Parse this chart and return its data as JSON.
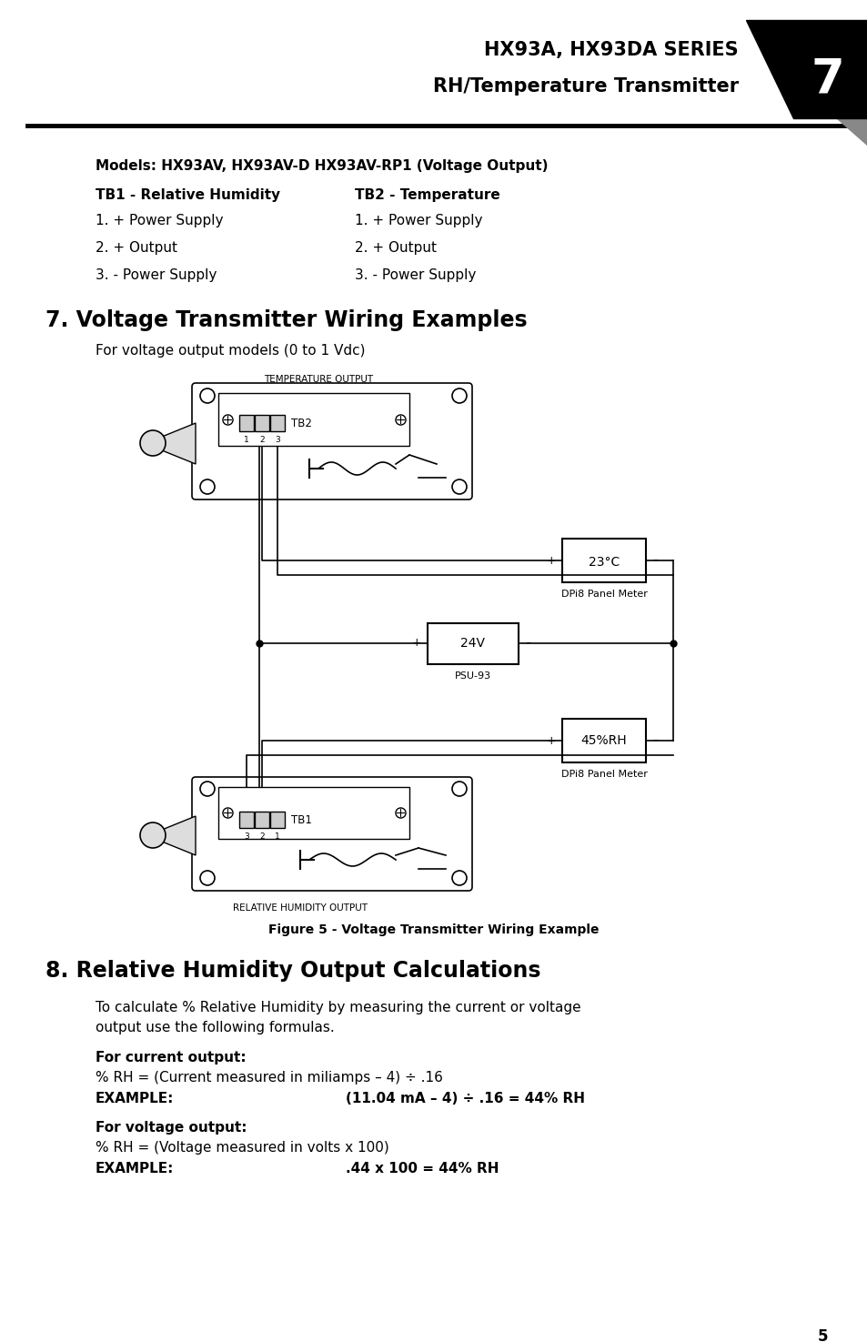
{
  "title_line1": "HX93A, HX93DA SERIES",
  "title_line2": "RH/Temperature Transmitter",
  "page_number": "7",
  "bg_color": "#ffffff",
  "models_text": "Models: HX93AV, HX93AV-D HX93AV-RP1 (Voltage Output)",
  "tb1_header": "TB1 - Relative Humidity",
  "tb2_header": "TB2 - Temperature",
  "tb1_items": [
    "1. + Power Supply",
    "2. + Output",
    "3. - Power Supply"
  ],
  "tb2_items": [
    "1. + Power Supply",
    "2. + Output",
    "3. - Power Supply"
  ],
  "section7_title": "7. Voltage Transmitter Wiring Examples",
  "section7_sub": "For voltage output models (0 to 1 Vdc)",
  "temp_output_label": "TEMPERATURE OUTPUT",
  "tb2_label": "TB2",
  "tb1_label": "TB1",
  "tb2_pins": [
    "1",
    "2",
    "3"
  ],
  "tb1_pins": [
    "3",
    "2",
    "1"
  ],
  "meter1_val": "23°C",
  "meter2_val": "45%RH",
  "meter_label": "DPi8 Panel Meter",
  "psu_val": "24V",
  "psu_label": "PSU-93",
  "rh_output_label": "RELATIVE HUMIDITY OUTPUT",
  "fig_caption": "Figure 5 - Voltage Transmitter Wiring Example",
  "section8_title": "8. Relative Humidity Output Calculations",
  "section8_body1": "To calculate % Relative Humidity by measuring the current or voltage",
  "section8_body2": "output use the following formulas.",
  "current_label": "For current output:",
  "current_formula": "% RH = (Current measured in miliamps – 4) ÷ .16",
  "current_example_label": "EXAMPLE:",
  "current_example_val": "(11.04 mA – 4) ÷ .16 = 44% RH",
  "voltage_label": "For voltage output:",
  "voltage_formula": "% RH = (Voltage measured in volts x 100)",
  "voltage_example_label": "EXAMPLE:",
  "voltage_example_val": ".44 x 100 = 44% RH",
  "footer_page": "5"
}
